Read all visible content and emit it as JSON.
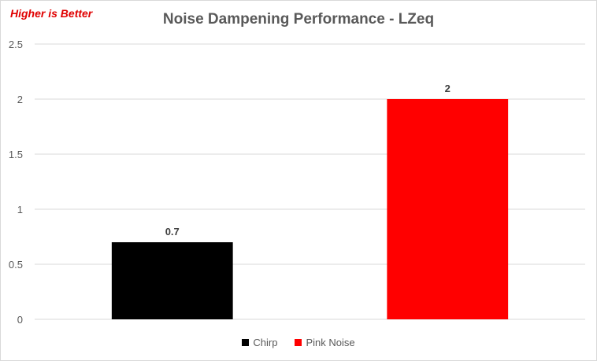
{
  "chart_data": {
    "type": "bar",
    "title": "Noise Dampening Performance - LZeq",
    "annotation": "Higher is Better",
    "categories": [
      "Chirp",
      "Pink Noise"
    ],
    "values": [
      0.7,
      2
    ],
    "data_labels": [
      "0.7",
      "2"
    ],
    "colors": [
      "#000000",
      "#ff0000"
    ],
    "ylim": [
      0,
      2.5
    ],
    "yticks": [
      "0",
      "0.5",
      "1",
      "1.5",
      "2",
      "2.5"
    ],
    "grid": true,
    "legend_position": "bottom",
    "legend": [
      {
        "label": "Chirp",
        "color": "#000000"
      },
      {
        "label": "Pink Noise",
        "color": "#ff0000"
      }
    ]
  }
}
